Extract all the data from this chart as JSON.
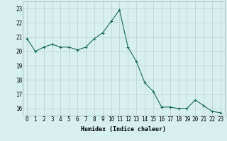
{
  "x": [
    0,
    1,
    2,
    3,
    4,
    5,
    6,
    7,
    8,
    9,
    10,
    11,
    12,
    13,
    14,
    15,
    16,
    17,
    18,
    19,
    20,
    21,
    22,
    23
  ],
  "y": [
    20.9,
    20.0,
    20.3,
    20.5,
    20.3,
    20.3,
    20.1,
    20.3,
    20.9,
    21.3,
    22.1,
    22.9,
    20.3,
    19.3,
    17.8,
    17.2,
    16.1,
    16.1,
    16.0,
    16.0,
    16.6,
    16.2,
    15.8,
    15.7
  ],
  "xlabel": "Humidex (Indice chaleur)",
  "ylim": [
    15.5,
    23.5
  ],
  "xlim": [
    -0.5,
    23.5
  ],
  "yticks": [
    16,
    17,
    18,
    19,
    20,
    21,
    22,
    23
  ],
  "xticks": [
    0,
    1,
    2,
    3,
    4,
    5,
    6,
    7,
    8,
    9,
    10,
    11,
    12,
    13,
    14,
    15,
    16,
    17,
    18,
    19,
    20,
    21,
    22,
    23
  ],
  "line_color": "#1a6b5a",
  "marker": "+",
  "bg_color": "#d6f0f0",
  "grid_color": "#b8d0d0",
  "xlabel_fontsize": 6.0,
  "tick_fontsize": 5.5
}
